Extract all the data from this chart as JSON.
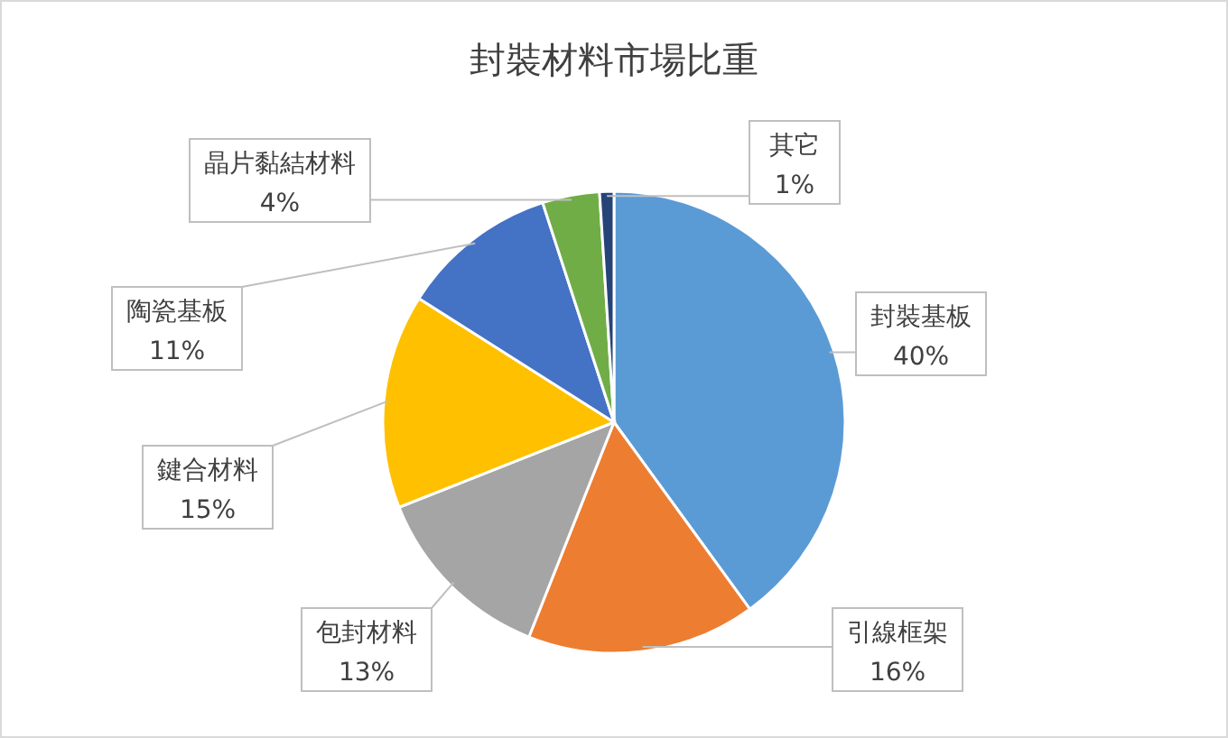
{
  "chart_data": {
    "type": "pie",
    "title": "封裝材料市場比重",
    "categories": [
      "封裝基板",
      "引線框架",
      "包封材料",
      "鍵合材料",
      "陶瓷基板",
      "晶片黏結材料",
      "其它"
    ],
    "values": [
      40,
      16,
      13,
      15,
      11,
      4,
      1
    ],
    "colors": [
      "#5b9bd5",
      "#ed7d31",
      "#a5a5a5",
      "#ffc000",
      "#4472c4",
      "#70ad47",
      "#264478"
    ],
    "value_labels": [
      "40%",
      "16%",
      "13%",
      "15%",
      "11%",
      "4%",
      "1%"
    ]
  }
}
